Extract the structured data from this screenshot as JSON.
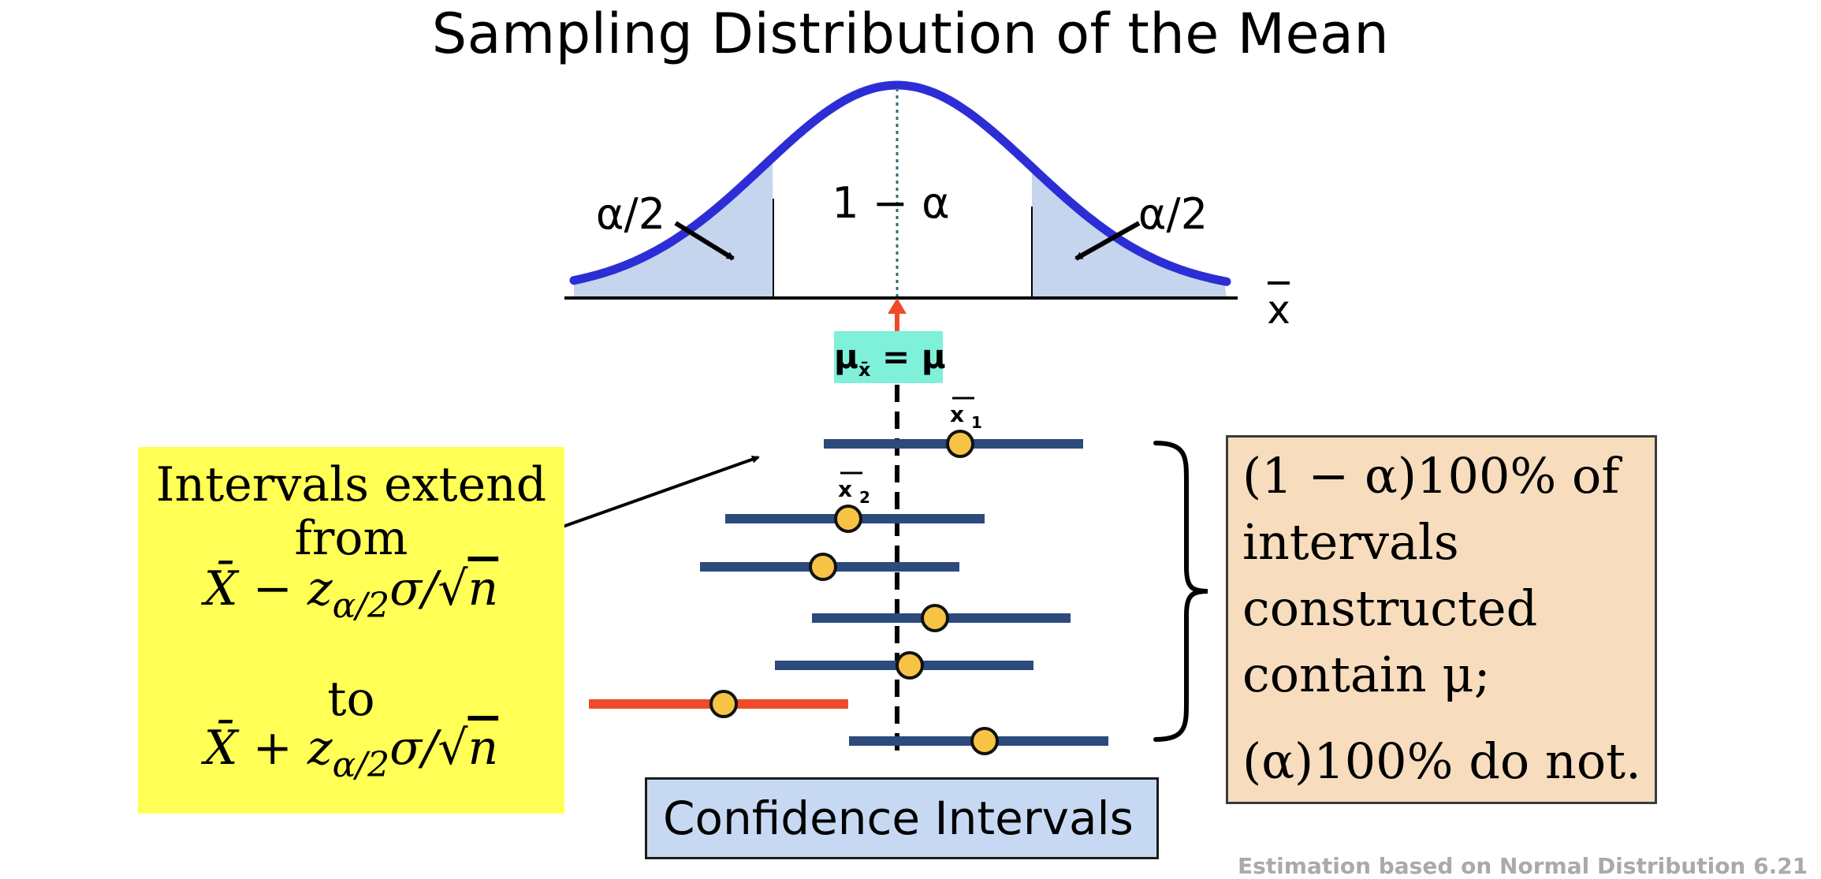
{
  "title": "Sampling Distribution of the Mean",
  "curve": {
    "center_label": "1 − α",
    "left_tail_label": "α/2",
    "right_tail_label": "α/2",
    "axis_label": "x̄",
    "mean_label": "μx̄ = μ"
  },
  "colors": {
    "curve": "#2d2dd6",
    "tail_fill": "#c5d5ee",
    "interval_contains": "#2c4a7c",
    "interval_misses": "#ee4b2b",
    "point": "#f6c344",
    "mean_arrow": "#ee4b2b",
    "mean_label_bg": "#7ff0d9",
    "yellow_callout": "#ffff55",
    "tan_callout": "#f7ddbd",
    "ci_box": "#c7d9f2"
  },
  "intervals": [
    {
      "label": "x̄1",
      "contains_mu": true
    },
    {
      "label": "x̄2",
      "contains_mu": true
    },
    {
      "label": "",
      "contains_mu": true
    },
    {
      "label": "",
      "contains_mu": true
    },
    {
      "label": "",
      "contains_mu": true
    },
    {
      "label": "",
      "contains_mu": false
    },
    {
      "label": "",
      "contains_mu": true
    }
  ],
  "yellow_callout": {
    "line1": "Intervals extend",
    "line2": "from",
    "formula_lower": "X̄ − zα/2σ/√n",
    "line_to": "to",
    "formula_upper": "X̄ + zα/2σ/√n"
  },
  "tan_callout": {
    "line1": "(1 − α)100% of",
    "line2": "intervals",
    "line3": "constructed",
    "line4": "contain μ;",
    "line5": "(α)100% do not."
  },
  "ci_box_label": "Confidence Intervals",
  "footer_text": "Estimation based on Normal Distribution 6.21"
}
